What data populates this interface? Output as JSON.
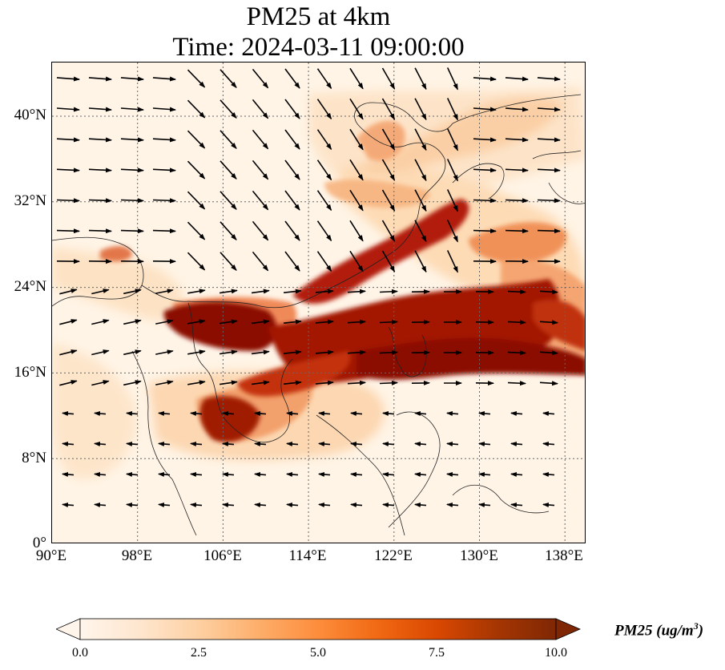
{
  "title": "PM25 at 4km",
  "subtitle": "Time: 2024-03-11 09:00:00",
  "map": {
    "lon_range": [
      90,
      140
    ],
    "lat_range": [
      0,
      45
    ],
    "lat_ticks": [
      "0°",
      "8°N",
      "16°N",
      "24°N",
      "32°N",
      "40°N"
    ],
    "lon_ticks": [
      "90°E",
      "98°E",
      "106°E",
      "114°E",
      "122°E",
      "130°E",
      "138°E"
    ],
    "gridlines": true
  },
  "colorbar": {
    "label": "PM25 (ug/m$^3$)",
    "label_display": "PM25 (ug/m",
    "label_sup": "3",
    "label_close": ")",
    "ticks": [
      "0.0",
      "2.5",
      "5.0",
      "7.5",
      "10.0"
    ],
    "range": [
      0,
      10
    ],
    "colormap": [
      "#fff5eb",
      "#fee6ce",
      "#fdd0a2",
      "#fdae6b",
      "#fd8d3c",
      "#f16913",
      "#d94801",
      "#a63603",
      "#7f2704"
    ]
  },
  "colors": {
    "background": "#fff4e6",
    "high": "#8b0000",
    "mid": "#e34a33",
    "low": "#fdd49e",
    "coast": "#222222",
    "grid": "#666666"
  }
}
